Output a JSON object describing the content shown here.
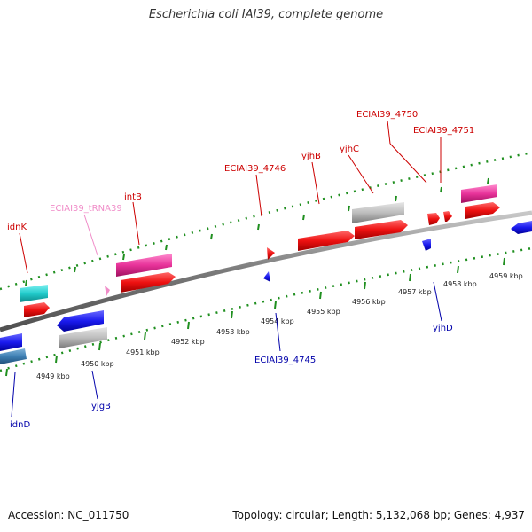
{
  "title": "Escherichia coli IAI39, complete genome",
  "footer": {
    "accession": "Accession: NC_011750",
    "summary": "Topology: circular; Length: 5,132,068 bp; Genes: 4,937"
  },
  "colors": {
    "forward_gene": "#ee1111",
    "reverse_gene": "#1a1aee",
    "trna": "#ee3399",
    "pseudo_gray": "#b8b8b8",
    "cyan_gene": "#22cccc",
    "backbone": "#808080",
    "dotted_track": "#1f8f1f",
    "label_forward": "#cc0000",
    "label_reverse": "#0000aa",
    "label_trna": "#f08cc8"
  },
  "scale": {
    "unit": "kbp",
    "ticks": [
      "4949 kbp",
      "4950 kbp",
      "4951 kbp",
      "4952 kbp",
      "4953 kbp",
      "4954 kbp",
      "4955 kbp",
      "4956 kbp",
      "4957 kbp",
      "4958 kbp",
      "4959 kbp"
    ]
  },
  "forward_labels": [
    "idnK",
    "ECIAI39_tRNA39",
    "intB",
    "ECIAI39_4746",
    "yjhB",
    "yjhC",
    "ECIAI39_4750",
    "ECIAI39_4751"
  ],
  "reverse_labels": [
    "idnD",
    "yjgB",
    "ECIAI39_4745",
    "yjhD"
  ]
}
